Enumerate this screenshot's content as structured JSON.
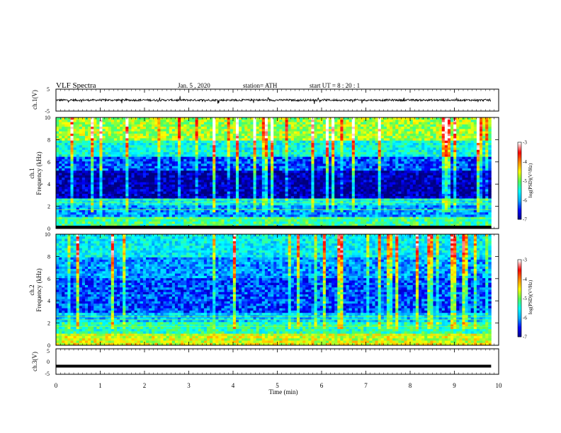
{
  "header": {
    "title": "VLF  Spectra",
    "date": "Jan. 5 , 2020",
    "station": "station= ATH",
    "start": "start  UT  =   8  : 20 : 1"
  },
  "chart_data": [
    {
      "type": "line",
      "name": "ch1-waveform",
      "ylabel": "ch.1(V)",
      "ylim": [
        -5,
        5
      ],
      "yticks": [
        "5",
        "-5"
      ],
      "xlim": [
        0,
        10
      ],
      "baseline": 0,
      "approx_amplitude_range": [
        -1,
        1
      ],
      "data_end_min": 9.83
    },
    {
      "type": "heatmap",
      "name": "ch1-spectrogram",
      "ylabel": "ch.1\nFrequency (kHz)",
      "ylim": [
        0,
        10
      ],
      "yticks": [
        "0",
        "2",
        "4",
        "6",
        "8",
        "10"
      ],
      "xlim": [
        0,
        10
      ],
      "data_end_min": 9.83,
      "description_bands_kHz_logPSD": [
        {
          "from": 0.0,
          "to": 0.3,
          "level": -7
        },
        {
          "from": 0.3,
          "to": 1.0,
          "level": -5.2
        },
        {
          "from": 1.0,
          "to": 2.0,
          "level": -6.0
        },
        {
          "from": 2.0,
          "to": 2.8,
          "level": -5.6
        },
        {
          "from": 2.8,
          "to": 5.2,
          "level": -6.8
        },
        {
          "from": 5.2,
          "to": 6.5,
          "level": -6.3
        },
        {
          "from": 6.5,
          "to": 8.0,
          "level": -5.5
        },
        {
          "from": 8.0,
          "to": 10.0,
          "level": -4.8
        }
      ],
      "colorbar": {
        "label": "log(PSD)(V²/Hz)",
        "min": -7,
        "max": -3,
        "ticks": [
          "-3",
          "-4",
          "-5",
          "-6",
          "-7"
        ]
      }
    },
    {
      "type": "heatmap",
      "name": "ch2-spectrogram",
      "ylabel": "ch.2\nFrequency (kHz)",
      "ylim": [
        0,
        10
      ],
      "yticks": [
        "0",
        "2",
        "4",
        "6",
        "8",
        "10"
      ],
      "xlim": [
        0,
        10
      ],
      "data_end_min": 9.83,
      "description_bands_kHz_logPSD": [
        {
          "from": 0.0,
          "to": 0.3,
          "level": -4.5
        },
        {
          "from": 0.3,
          "to": 1.0,
          "level": -4.6
        },
        {
          "from": 1.0,
          "to": 2.0,
          "level": -5.3
        },
        {
          "from": 2.0,
          "to": 3.0,
          "level": -5.8
        },
        {
          "from": 3.0,
          "to": 6.0,
          "level": -6.3
        },
        {
          "from": 6.0,
          "to": 8.0,
          "level": -6.0
        },
        {
          "from": 8.0,
          "to": 10.0,
          "level": -5.6
        }
      ],
      "colorbar": {
        "label": "log(PSD)(V²/Hz)",
        "min": -7,
        "max": -3,
        "ticks": [
          "-3",
          "-4",
          "-5",
          "-6",
          "-7"
        ]
      }
    },
    {
      "type": "line",
      "name": "ch3-waveform",
      "ylabel": "ch.3(V)",
      "ylim": [
        -5,
        5
      ],
      "yticks": [
        "5",
        "0",
        "-5"
      ],
      "xlim": [
        0,
        10
      ],
      "constant_value": -1.8,
      "data_end_min": 9.83
    }
  ],
  "x_axis": {
    "label": "Time  (min)",
    "ticks": [
      "0",
      "1",
      "2",
      "3",
      "4",
      "5",
      "6",
      "7",
      "8",
      "9",
      "10"
    ],
    "range": [
      0,
      10
    ]
  },
  "colors": {
    "colormap": [
      "#00007f",
      "#0000ff",
      "#00aaff",
      "#00ffff",
      "#55ff55",
      "#ffff00",
      "#ff8800",
      "#ff0000",
      "#ffffff"
    ],
    "axis": "#000000"
  }
}
